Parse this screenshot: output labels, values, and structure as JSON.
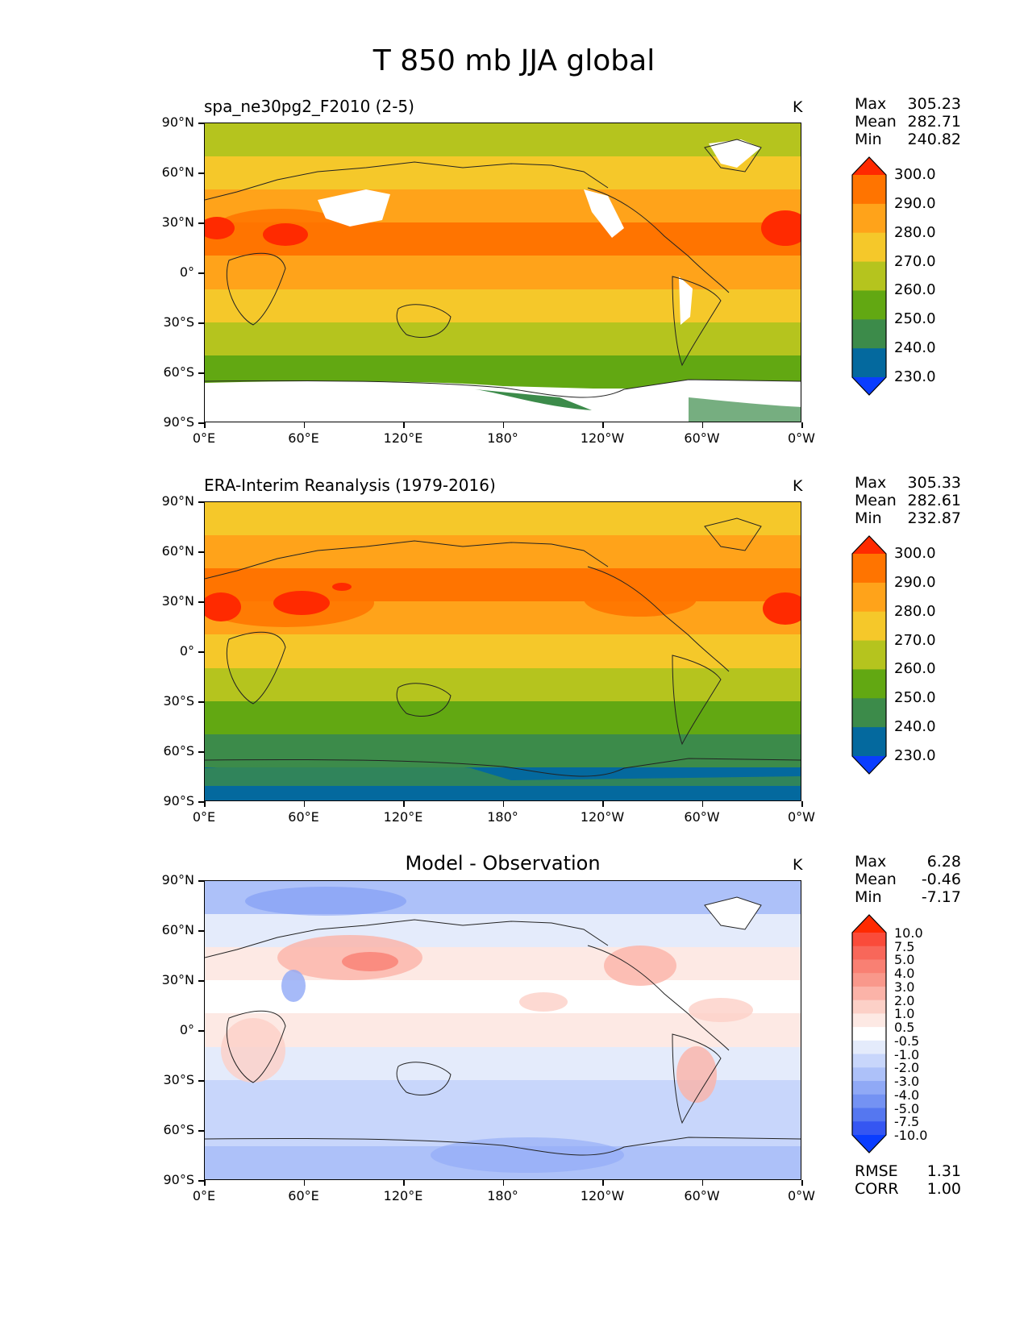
{
  "figure": {
    "title": "T 850 mb JJA global"
  },
  "axes": {
    "lat_ticks": [
      "90°N",
      "60°N",
      "30°N",
      "0°",
      "30°S",
      "60°S",
      "90°S"
    ],
    "lon_ticks": [
      "0°E",
      "60°E",
      "120°E",
      "180°",
      "120°W",
      "60°W",
      "0°W"
    ]
  },
  "panels": [
    {
      "title": "spa_ne30pg2_F2010 (2-5)",
      "units": "K",
      "stats": {
        "max_label": "Max",
        "max": "305.23",
        "mean_label": "Mean",
        "mean": "282.71",
        "min_label": "Min",
        "min": "240.82"
      },
      "colorbar": {
        "labels": [
          "300.0",
          "290.0",
          "280.0",
          "270.0",
          "260.0",
          "250.0",
          "240.0",
          "230.0"
        ],
        "colors": [
          "#ff2a00",
          "#ff7400",
          "#ffa31a",
          "#f5c82a",
          "#b5c41e",
          "#62a812",
          "#3c8b4a",
          "#04699e",
          "#0a3dff"
        ]
      },
      "zonal_bands": [
        {
          "color": "#b5c41e"
        },
        {
          "color": "#f5c82a"
        },
        {
          "color": "#ffa31a"
        },
        {
          "color": "#ff7400"
        },
        {
          "color": "#ffa31a"
        },
        {
          "color": "#f5c82a"
        },
        {
          "color": "#b5c41e"
        },
        {
          "color": "#62a812"
        },
        {
          "color": "#ffffff"
        }
      ]
    },
    {
      "title": "ERA-Interim Reanalysis (1979-2016)",
      "units": "K",
      "stats": {
        "max_label": "Max",
        "max": "305.33",
        "mean_label": "Mean",
        "mean": "282.61",
        "min_label": "Min",
        "min": "232.87"
      },
      "colorbar": {
        "labels": [
          "300.0",
          "290.0",
          "280.0",
          "270.0",
          "260.0",
          "250.0",
          "240.0",
          "230.0"
        ],
        "colors": [
          "#ff2a00",
          "#ff7400",
          "#ffa31a",
          "#f5c82a",
          "#b5c41e",
          "#62a812",
          "#3c8b4a",
          "#04699e",
          "#0a3dff"
        ]
      },
      "zonal_bands": [
        {
          "color": "#f5c82a"
        },
        {
          "color": "#ffa31a"
        },
        {
          "color": "#ff7400"
        },
        {
          "color": "#ffa31a"
        },
        {
          "color": "#f5c82a"
        },
        {
          "color": "#b5c41e"
        },
        {
          "color": "#62a812"
        },
        {
          "color": "#3c8b4a"
        },
        {
          "color": "#04699e"
        }
      ]
    },
    {
      "title": "Model - Observation",
      "units": "K",
      "stats": {
        "max_label": "Max",
        "max": "6.28",
        "mean_label": "Mean",
        "mean": "-0.46",
        "min_label": "Min",
        "min": "-7.17"
      },
      "extra_stats": {
        "rmse_label": "RMSE",
        "rmse": "1.31",
        "corr_label": "CORR",
        "corr": "1.00"
      },
      "colorbar": {
        "labels": [
          "10.0",
          "7.5",
          "5.0",
          "4.0",
          "3.0",
          "2.0",
          "1.0",
          "0.5",
          "-0.5",
          "-1.0",
          "-2.0",
          "-3.0",
          "-4.0",
          "-5.0",
          "-7.5",
          "-10.0"
        ],
        "colors": [
          "#ff2a00",
          "#fa4b3a",
          "#f8675a",
          "#f98073",
          "#f9988b",
          "#fbb3a8",
          "#fcd0c7",
          "#fde9e4",
          "#ffffff",
          "#e4ebfb",
          "#c8d6fb",
          "#adc1f9",
          "#90a9f6",
          "#7492f3",
          "#5577f0",
          "#3556f2",
          "#0a3dff"
        ]
      },
      "zonal_bands": [
        {
          "color": "#adc1f9"
        },
        {
          "color": "#e4ebfb"
        },
        {
          "color": "#fde9e4"
        },
        {
          "color": "#ffffff"
        },
        {
          "color": "#fde9e4"
        },
        {
          "color": "#e4ebfb"
        },
        {
          "color": "#c8d6fb"
        },
        {
          "color": "#c8d6fb"
        },
        {
          "color": "#adc1f9"
        }
      ]
    }
  ]
}
